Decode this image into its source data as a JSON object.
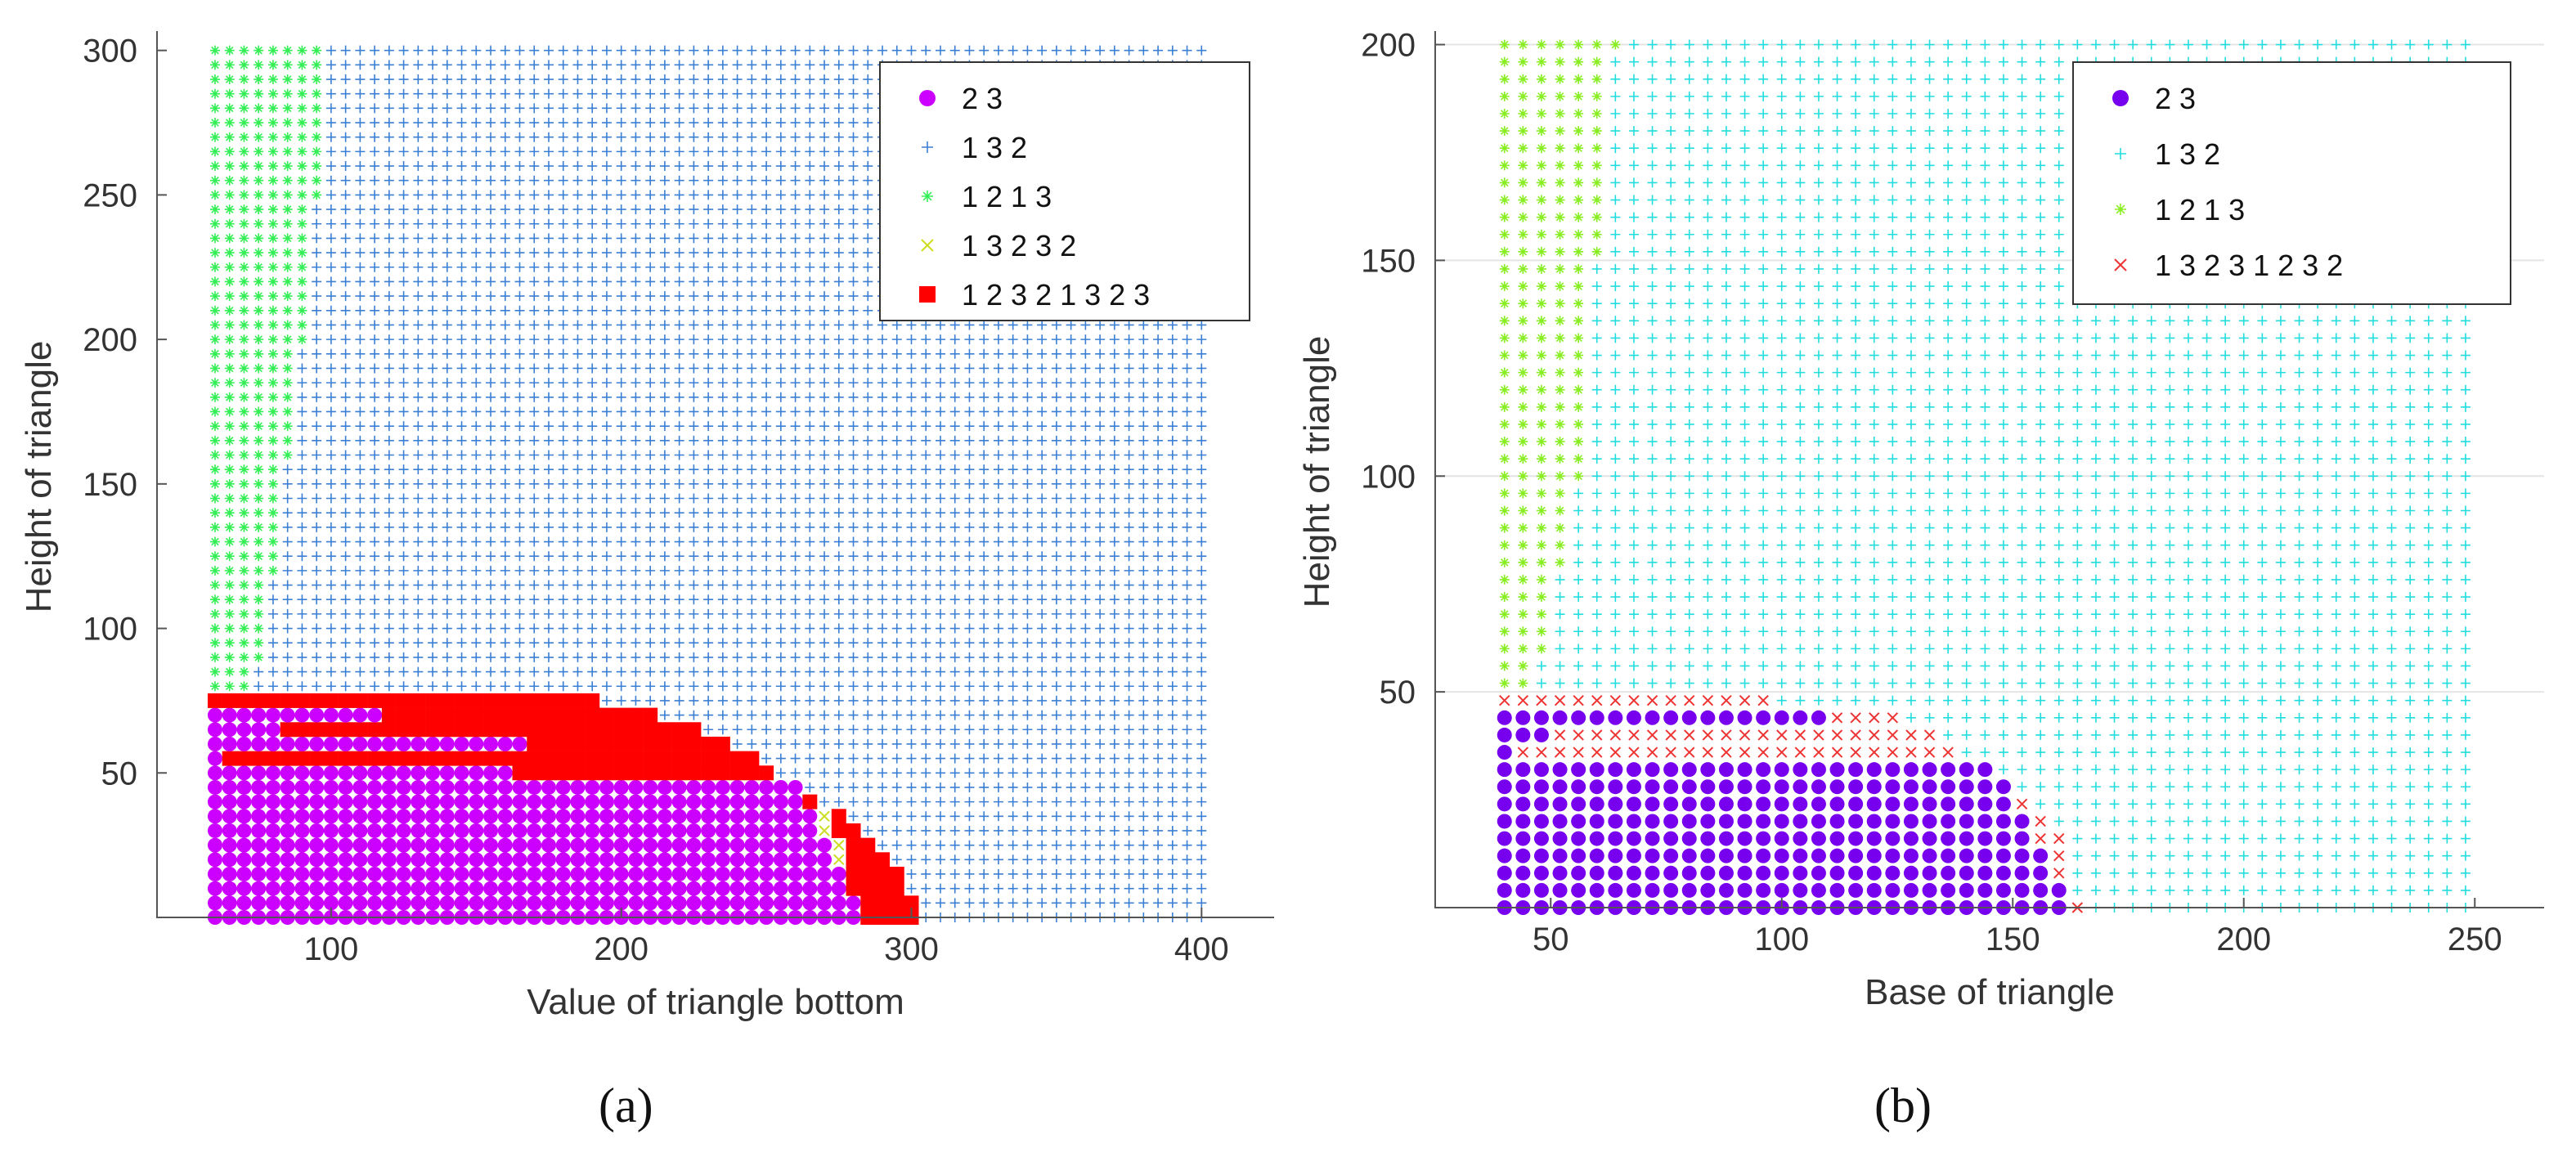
{
  "captions": {
    "a": "(a)",
    "b": "(b)"
  },
  "chart_data": [
    {
      "id": "a",
      "type": "scatter",
      "xlabel": "Value of triangle bottom",
      "ylabel": "Height of triangle",
      "xlim": [
        40,
        425
      ],
      "ylim": [
        0,
        305
      ],
      "xticks": [
        100,
        200,
        300,
        400
      ],
      "yticks": [
        50,
        100,
        150,
        200,
        250,
        300
      ],
      "grid": false,
      "legend_position": "top-right",
      "grid_step": 5,
      "x_start": 60,
      "x_end": 400,
      "y_start": 0,
      "y_end": 300,
      "series": [
        {
          "name": "2 3",
          "marker": "dot",
          "color": "#cc00ff"
        },
        {
          "name": "1 3 2",
          "marker": "plus",
          "color": "#3b7fd4"
        },
        {
          "name": "1 2 1 3",
          "marker": "star",
          "color": "#33ee55"
        },
        {
          "name": "1 3 2 3 2",
          "marker": "x",
          "color": "#ccdd22"
        },
        {
          "name": "1 2 3 2 1 3 2 3",
          "marker": "square",
          "color": "#ff0000"
        }
      ],
      "region_boundaries": {
        "green_upper_x": [
          [
            300,
            98
          ],
          [
            250,
            95
          ],
          [
            200,
            90
          ],
          [
            160,
            85
          ],
          [
            120,
            80
          ],
          [
            90,
            75
          ],
          [
            60,
            68
          ]
        ],
        "purple_outer": [
          [
            55,
            60
          ],
          [
            65,
            80
          ],
          [
            70,
            115
          ],
          [
            72,
            150
          ],
          [
            72,
            200
          ],
          [
            70,
            215
          ],
          [
            65,
            235
          ],
          [
            55,
            250
          ],
          [
            45,
            260
          ],
          [
            35,
            265
          ],
          [
            25,
            270
          ],
          [
            15,
            275
          ],
          [
            5,
            280
          ]
        ],
        "red_outer": [
          [
            75,
            145
          ],
          [
            75,
            190
          ],
          [
            70,
            210
          ],
          [
            65,
            225
          ],
          [
            55,
            245
          ],
          [
            45,
            260
          ],
          [
            35,
            275
          ],
          [
            25,
            285
          ],
          [
            15,
            295
          ],
          [
            5,
            300
          ]
        ]
      }
    },
    {
      "id": "b",
      "type": "scatter",
      "xlabel": "Base of triangle",
      "ylabel": "Height of triangle",
      "xlim": [
        25,
        265
      ],
      "ylim": [
        0,
        202
      ],
      "xticks": [
        50,
        100,
        150,
        200,
        250
      ],
      "yticks": [
        50,
        100,
        150,
        200
      ],
      "grid": true,
      "legend_position": "top-right",
      "grid_step": 4,
      "x_start": 40,
      "x_end": 250,
      "y_start": 0,
      "y_end": 200,
      "series": [
        {
          "name": "2 3",
          "marker": "dot",
          "color": "#7700ee"
        },
        {
          "name": "1 3 2",
          "marker": "plus",
          "color": "#22dddd"
        },
        {
          "name": "1 2 1 3",
          "marker": "star",
          "color": "#88ee22"
        },
        {
          "name": "1 3 2 3 1 2 3 2",
          "marker": "x",
          "color": "#ee3333"
        }
      ],
      "region_boundaries": {
        "green_upper_x": [
          [
            200,
            64
          ],
          [
            150,
            60
          ],
          [
            100,
            56
          ],
          [
            80,
            52
          ],
          [
            60,
            48
          ],
          [
            40,
            44
          ]
        ],
        "purple_outer": [
          [
            36,
            40
          ],
          [
            40,
            48
          ],
          [
            44,
            65
          ],
          [
            44,
            110
          ],
          [
            42,
            120
          ],
          [
            38,
            130
          ],
          [
            34,
            140
          ],
          [
            30,
            148
          ],
          [
            25,
            150
          ],
          [
            18,
            155
          ],
          [
            10,
            158
          ],
          [
            4,
            162
          ]
        ],
        "red_outer": [
          [
            48,
            98
          ],
          [
            44,
            125
          ],
          [
            40,
            132
          ],
          [
            34,
            140
          ],
          [
            30,
            148
          ],
          [
            25,
            152
          ],
          [
            18,
            160
          ],
          [
            10,
            163
          ],
          [
            2,
            164
          ]
        ]
      }
    }
  ]
}
